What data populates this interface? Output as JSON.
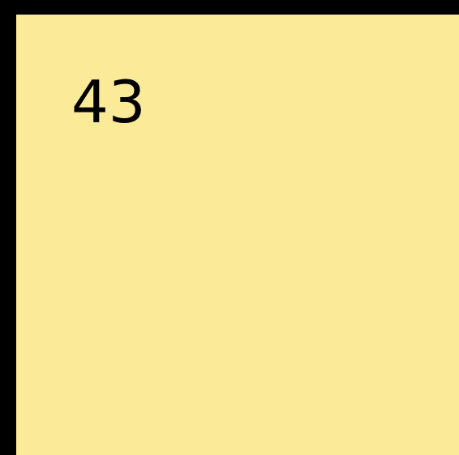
{
  "tile": {
    "number": "43",
    "background_color": "#fbea98",
    "border_color": "#000000"
  }
}
